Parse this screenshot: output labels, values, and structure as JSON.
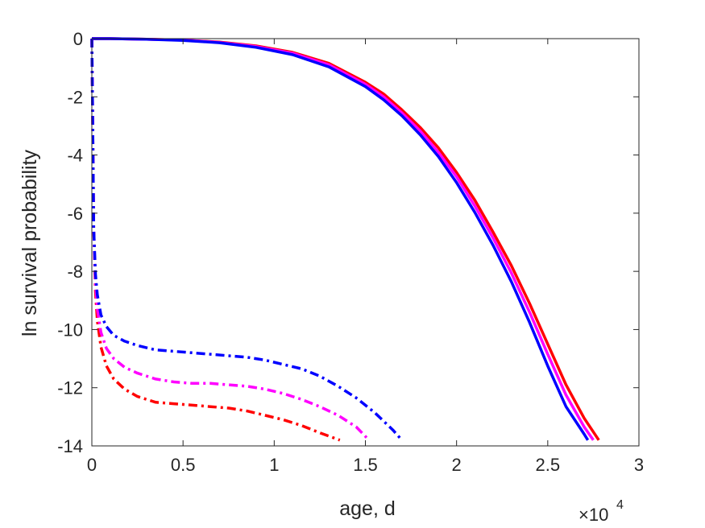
{
  "chart_data": {
    "type": "line",
    "xlabel": "age, d",
    "ylabel": "ln survival probability",
    "x_exponent_label": {
      "base": "×10",
      "power": "4"
    },
    "xlim": [
      0,
      30000
    ],
    "ylim": [
      -14,
      0
    ],
    "xticks": [
      0,
      5000,
      10000,
      15000,
      20000,
      25000,
      30000
    ],
    "xtick_labels": [
      "0",
      "0.5",
      "1",
      "1.5",
      "2",
      "2.5",
      "3"
    ],
    "yticks": [
      0,
      -2,
      -4,
      -6,
      -8,
      -10,
      -12,
      -14
    ],
    "ytick_labels": [
      "0",
      "-2",
      "-4",
      "-6",
      "-8",
      "-10",
      "-12",
      "-14"
    ],
    "grid": false,
    "series": [
      {
        "color": "#ff0000",
        "style": "solid",
        "x": [
          0,
          1000,
          3000,
          5000,
          7000,
          9000,
          11000,
          13000,
          15000,
          16000,
          17000,
          18000,
          19000,
          20000,
          21000,
          22000,
          23000,
          24000,
          25000,
          26000,
          27000,
          27800
        ],
        "y": [
          0,
          0,
          -0.02,
          -0.05,
          -0.12,
          -0.25,
          -0.47,
          -0.85,
          -1.5,
          -1.9,
          -2.45,
          -3.05,
          -3.75,
          -4.6,
          -5.55,
          -6.65,
          -7.8,
          -9.1,
          -10.5,
          -11.9,
          -13.05,
          -13.8
        ]
      },
      {
        "color": "#ff00ff",
        "style": "solid",
        "x": [
          0,
          1000,
          3000,
          5000,
          7000,
          9000,
          11000,
          13000,
          15000,
          16000,
          17000,
          18000,
          19000,
          20000,
          21000,
          22000,
          23000,
          24000,
          25000,
          26000,
          27000,
          27500
        ],
        "y": [
          0,
          0,
          -0.02,
          -0.05,
          -0.13,
          -0.27,
          -0.5,
          -0.9,
          -1.57,
          -2.0,
          -2.55,
          -3.17,
          -3.9,
          -4.75,
          -5.75,
          -6.85,
          -8.05,
          -9.4,
          -10.85,
          -12.25,
          -13.35,
          -13.8
        ]
      },
      {
        "color": "#0000ff",
        "style": "solid",
        "x": [
          0,
          1000,
          3000,
          5000,
          7000,
          9000,
          11000,
          13000,
          15000,
          16000,
          17000,
          18000,
          19000,
          20000,
          21000,
          22000,
          23000,
          24000,
          25000,
          26000,
          27000,
          27200
        ],
        "y": [
          0,
          0,
          -0.02,
          -0.06,
          -0.14,
          -0.3,
          -0.55,
          -0.97,
          -1.65,
          -2.1,
          -2.65,
          -3.3,
          -4.05,
          -4.95,
          -5.97,
          -7.1,
          -8.35,
          -9.75,
          -11.25,
          -12.65,
          -13.6,
          -13.8
        ]
      },
      {
        "color": "#ff0000",
        "style": "dashdot",
        "x": [
          0,
          50,
          100,
          200,
          300,
          500,
          800,
          1200,
          1800,
          2500,
          3500,
          4500,
          5500,
          6500,
          7500,
          8500,
          9500,
          10500,
          11500,
          12500,
          13600
        ],
        "y": [
          0,
          -3,
          -6.5,
          -8.7,
          -9.7,
          -10.6,
          -11.25,
          -11.7,
          -12.05,
          -12.3,
          -12.5,
          -12.55,
          -12.6,
          -12.65,
          -12.7,
          -12.8,
          -12.95,
          -13.1,
          -13.3,
          -13.55,
          -13.8
        ]
      },
      {
        "color": "#ff00ff",
        "style": "dashdot",
        "x": [
          0,
          50,
          100,
          200,
          300,
          500,
          800,
          1200,
          1800,
          2500,
          3500,
          4500,
          5500,
          6500,
          7500,
          8500,
          9500,
          10500,
          11500,
          12500,
          13500,
          14500,
          15200
        ],
        "y": [
          0,
          -3,
          -6.5,
          -8.4,
          -9.3,
          -10.1,
          -10.65,
          -11.0,
          -11.3,
          -11.5,
          -11.7,
          -11.8,
          -11.85,
          -11.85,
          -11.9,
          -11.95,
          -12.05,
          -12.2,
          -12.4,
          -12.65,
          -12.95,
          -13.35,
          -13.8
        ]
      },
      {
        "color": "#0000ff",
        "style": "dashdot",
        "x": [
          0,
          50,
          100,
          200,
          300,
          500,
          800,
          1200,
          1800,
          2500,
          3500,
          4500,
          5500,
          6500,
          7500,
          8500,
          9500,
          10500,
          11500,
          12500,
          13500,
          14500,
          15500,
          16500,
          17000
        ],
        "y": [
          0,
          -3,
          -6.5,
          -8.1,
          -8.8,
          -9.5,
          -9.9,
          -10.2,
          -10.4,
          -10.55,
          -10.7,
          -10.75,
          -10.8,
          -10.85,
          -10.9,
          -10.95,
          -11.05,
          -11.2,
          -11.35,
          -11.6,
          -11.95,
          -12.35,
          -12.85,
          -13.45,
          -13.8
        ]
      }
    ]
  }
}
